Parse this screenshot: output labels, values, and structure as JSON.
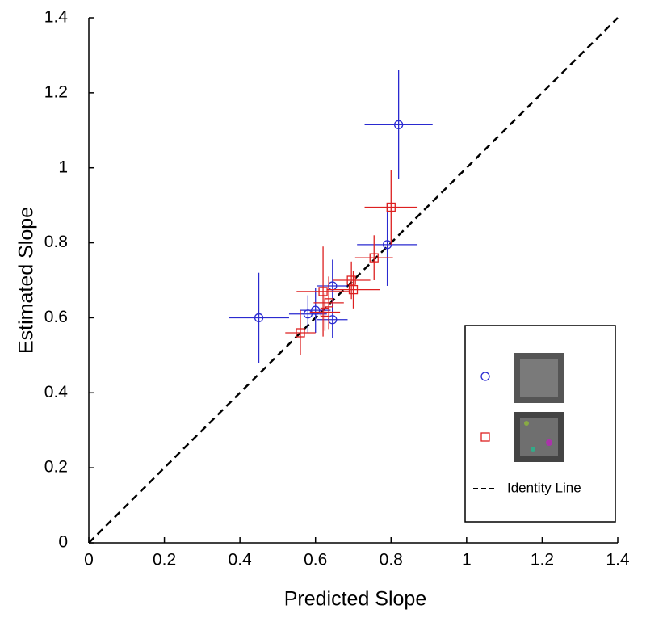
{
  "chart_data": {
    "type": "scatter",
    "xlabel": "Predicted Slope",
    "ylabel": "Estimated Slope",
    "xlim": [
      0,
      1.4
    ],
    "ylim": [
      0,
      1.4
    ],
    "xticks": [
      0,
      0.2,
      0.4,
      0.6,
      0.8,
      1,
      1.2,
      1.4
    ],
    "yticks": [
      0,
      0.2,
      0.4,
      0.6,
      0.8,
      1,
      1.2,
      1.4
    ],
    "identity_line": {
      "name": "Identity Line",
      "color": "#000000"
    },
    "legend": "lower right",
    "series": [
      {
        "marker": "circle",
        "color": "#2a2ad0",
        "x": [
          0.45,
          0.82,
          0.79,
          0.645,
          0.645,
          0.58,
          0.6
        ],
        "values": [
          0.6,
          1.115,
          0.795,
          0.685,
          0.595,
          0.61,
          0.62
        ],
        "xerr": [
          0.08,
          0.09,
          0.08,
          0.04,
          0.04,
          0.05,
          0.04
        ],
        "yerr": [
          0.12,
          0.145,
          0.11,
          0.07,
          0.05,
          0.05,
          0.06
        ]
      },
      {
        "marker": "square",
        "color": "#dd2020",
        "x": [
          0.8,
          0.755,
          0.7,
          0.695,
          0.62,
          0.635,
          0.625,
          0.56
        ],
        "values": [
          0.895,
          0.76,
          0.675,
          0.7,
          0.67,
          0.64,
          0.615,
          0.56
        ],
        "xerr": [
          0.07,
          0.05,
          0.07,
          0.05,
          0.07,
          0.04,
          0.04,
          0.04
        ],
        "yerr": [
          0.1,
          0.06,
          0.05,
          0.05,
          0.12,
          0.07,
          0.05,
          0.06
        ]
      }
    ]
  }
}
